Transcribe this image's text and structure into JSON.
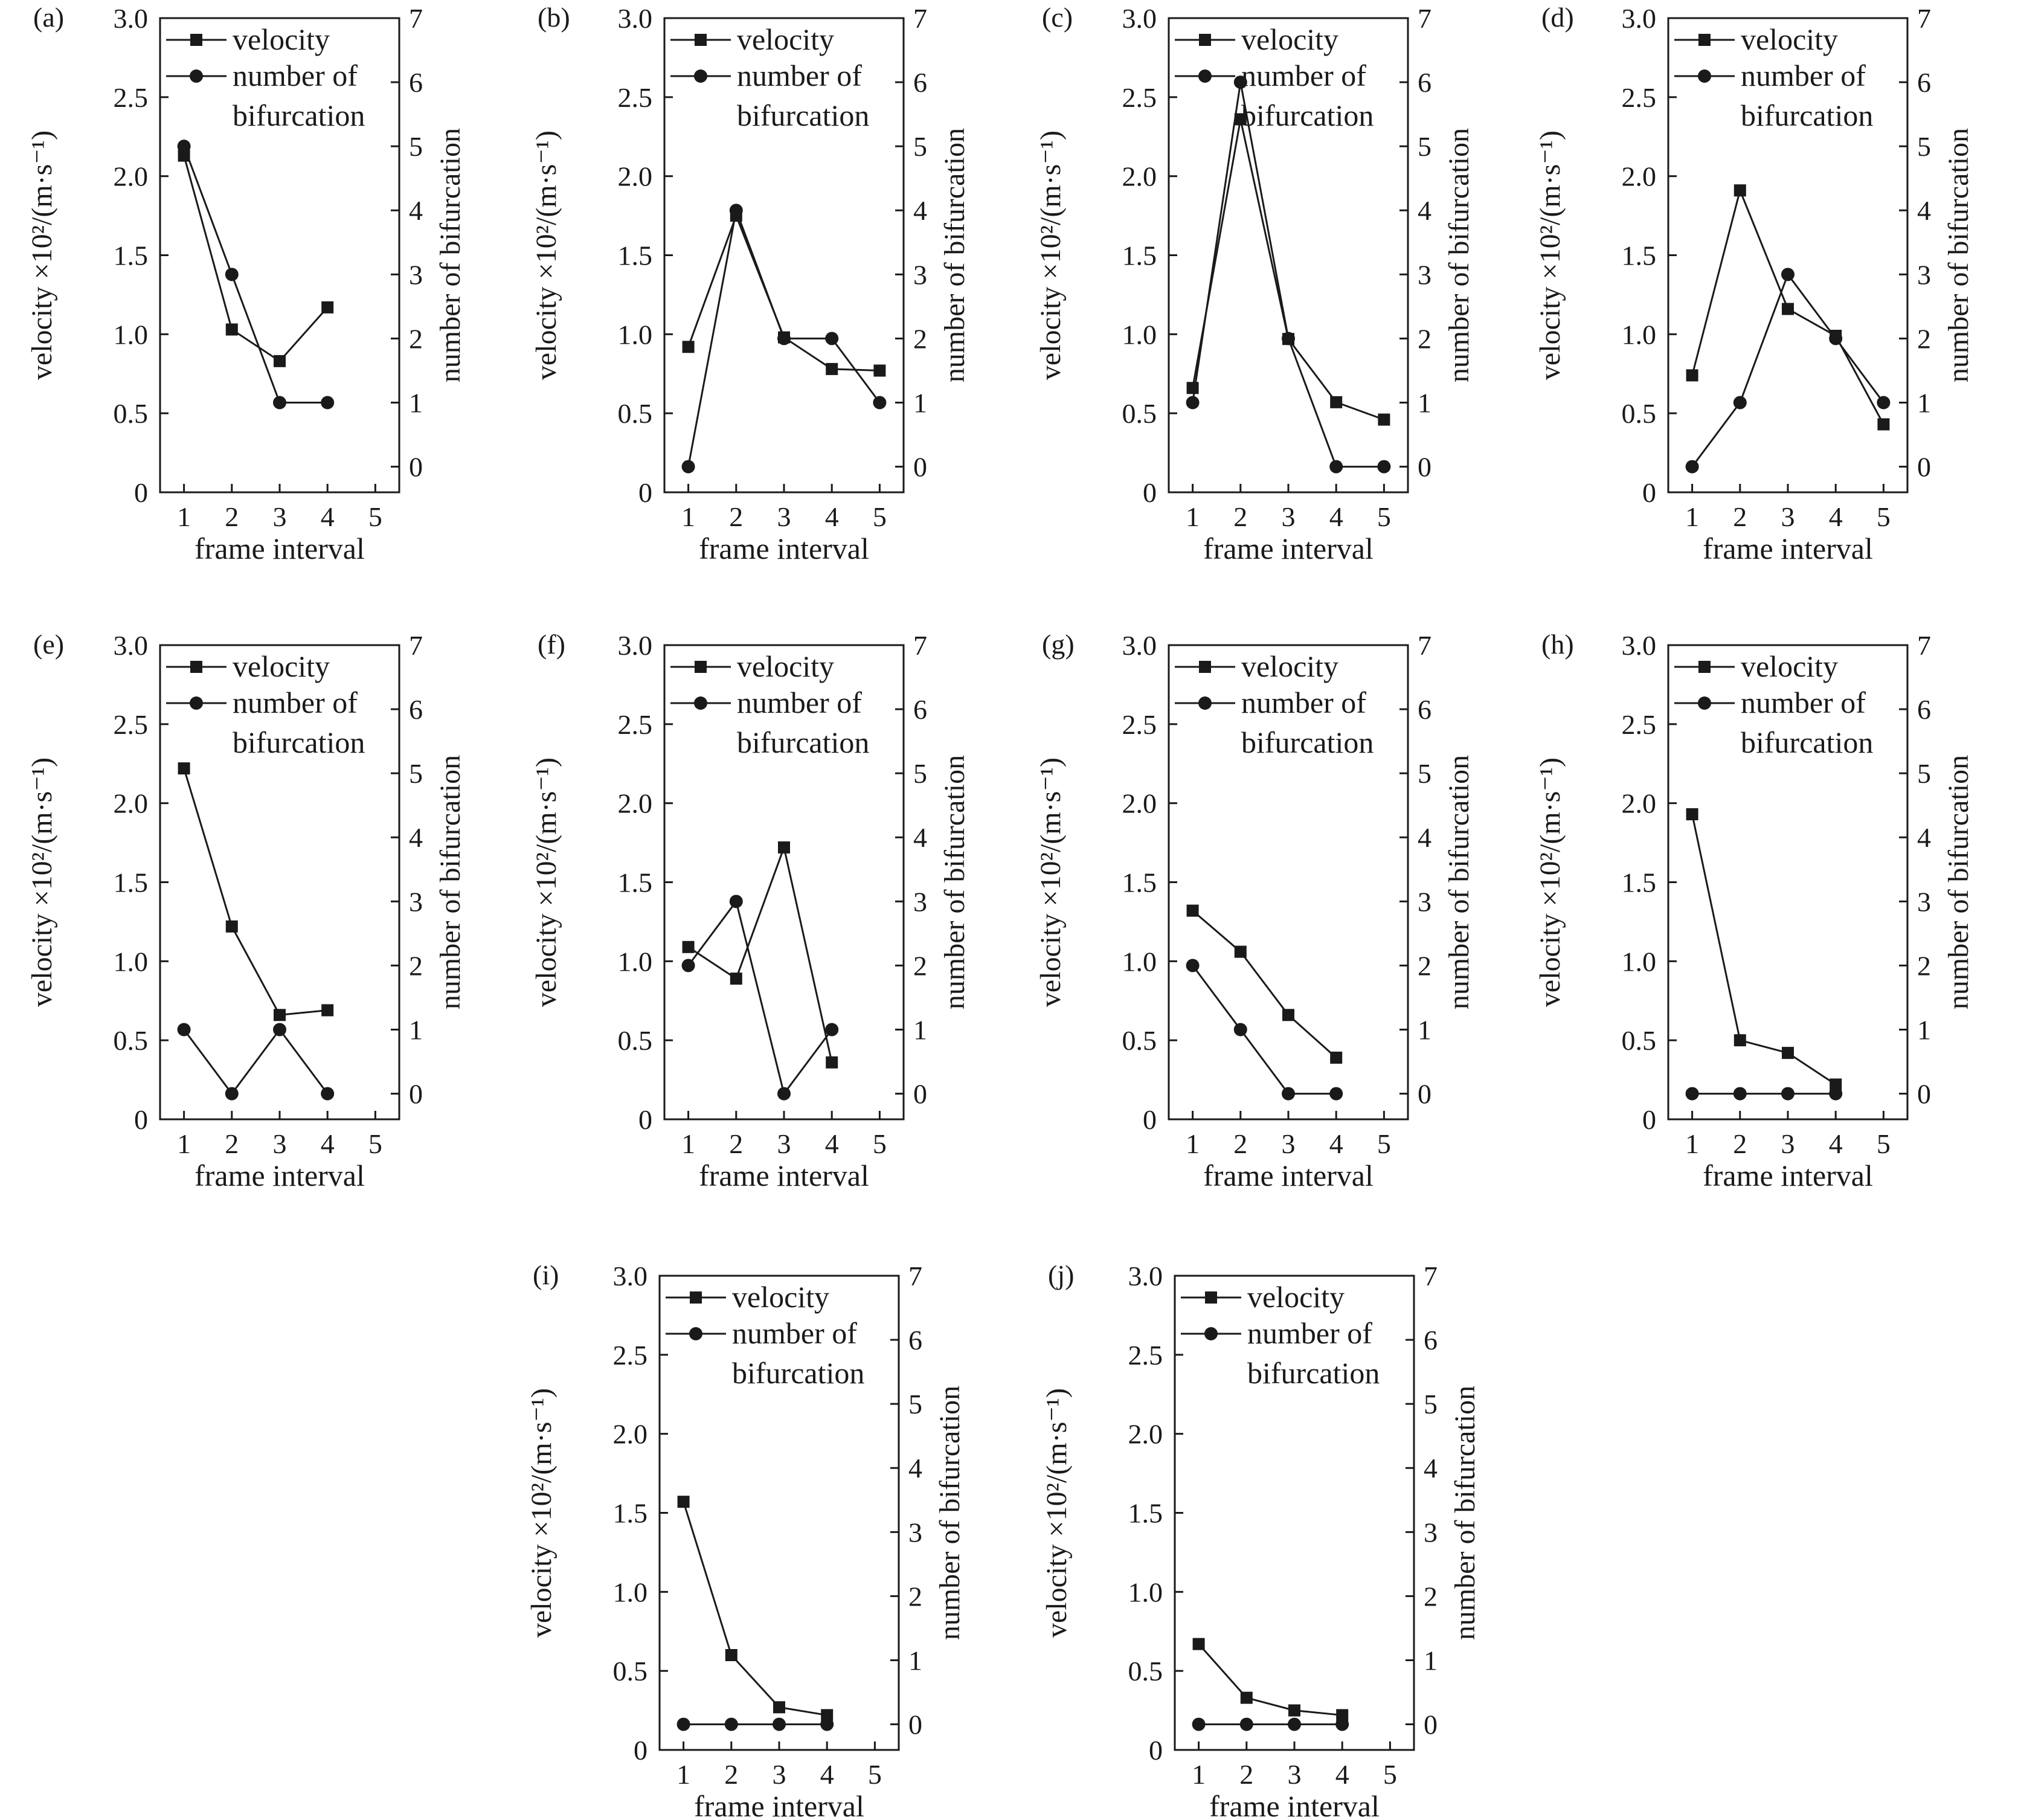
{
  "figure": {
    "legend": {
      "velocity_label": "velocity",
      "bifurcation_label_line1": "number of",
      "bifurcation_label_line2": "bifurcation"
    },
    "axes": {
      "xlabel": "frame interval",
      "ylabel_left": "velocity ×10²/(m·s⁻¹)",
      "ylabel_right": "number of bifurcation",
      "x_ticks": [
        "1",
        "2",
        "3",
        "4",
        "5"
      ],
      "y_left_ticks": [
        "0",
        "0.5",
        "1.0",
        "1.5",
        "2.0",
        "2.5",
        "3.0"
      ],
      "y_right_ticks": [
        "0",
        "1",
        "2",
        "3",
        "4",
        "5",
        "6",
        "7"
      ]
    }
  },
  "chart_data": [
    {
      "type": "line",
      "panel_label": "(a)",
      "x": [
        1,
        2,
        3,
        4
      ],
      "xlim": [
        0.5,
        5.5
      ],
      "ylim_left": [
        0,
        3
      ],
      "ylim_right": [
        -0.4,
        7
      ],
      "series": [
        {
          "name": "velocity",
          "marker": "square",
          "axis": "left",
          "values": [
            2.13,
            1.03,
            0.83,
            1.17
          ]
        },
        {
          "name": "number of bifurcation",
          "marker": "circle",
          "axis": "right",
          "values": [
            5,
            3,
            1,
            1
          ]
        }
      ]
    },
    {
      "type": "line",
      "panel_label": "(b)",
      "x": [
        1,
        2,
        3,
        4,
        5
      ],
      "xlim": [
        0.5,
        5.5
      ],
      "ylim_left": [
        0,
        3
      ],
      "ylim_right": [
        -0.4,
        7
      ],
      "series": [
        {
          "name": "velocity",
          "marker": "square",
          "axis": "left",
          "values": [
            0.92,
            1.75,
            0.98,
            0.78,
            0.77
          ]
        },
        {
          "name": "number of bifurcation",
          "marker": "circle",
          "axis": "right",
          "values": [
            0,
            4,
            2,
            2,
            1
          ]
        }
      ]
    },
    {
      "type": "line",
      "panel_label": "(c)",
      "x": [
        1,
        2,
        3,
        4,
        5
      ],
      "xlim": [
        0.5,
        5.5
      ],
      "ylim_left": [
        0,
        3
      ],
      "ylim_right": [
        -0.4,
        7
      ],
      "series": [
        {
          "name": "velocity",
          "marker": "square",
          "axis": "left",
          "values": [
            0.66,
            2.36,
            0.97,
            0.57,
            0.46
          ]
        },
        {
          "name": "number of bifurcation",
          "marker": "circle",
          "axis": "right",
          "values": [
            1,
            6,
            2,
            0,
            0
          ]
        }
      ]
    },
    {
      "type": "line",
      "panel_label": "(d)",
      "x": [
        1,
        2,
        3,
        4,
        5
      ],
      "xlim": [
        0.5,
        5.5
      ],
      "ylim_left": [
        0,
        3
      ],
      "ylim_right": [
        -0.4,
        7
      ],
      "series": [
        {
          "name": "velocity",
          "marker": "square",
          "axis": "left",
          "values": [
            0.74,
            1.91,
            1.16,
            0.99,
            0.43
          ]
        },
        {
          "name": "number of bifurcation",
          "marker": "circle",
          "axis": "right",
          "values": [
            0,
            1,
            3,
            2,
            1
          ]
        }
      ]
    },
    {
      "type": "line",
      "panel_label": "(e)",
      "x": [
        1,
        2,
        3,
        4
      ],
      "xlim": [
        0.5,
        5.5
      ],
      "ylim_left": [
        0,
        3
      ],
      "ylim_right": [
        -0.4,
        7
      ],
      "series": [
        {
          "name": "velocity",
          "marker": "square",
          "axis": "left",
          "values": [
            2.22,
            1.22,
            0.66,
            0.69
          ]
        },
        {
          "name": "number of bifurcation",
          "marker": "circle",
          "axis": "right",
          "values": [
            1,
            0,
            1,
            0
          ]
        }
      ]
    },
    {
      "type": "line",
      "panel_label": "(f)",
      "x": [
        1,
        2,
        3,
        4
      ],
      "xlim": [
        0.5,
        5.5
      ],
      "ylim_left": [
        0,
        3
      ],
      "ylim_right": [
        -0.4,
        7
      ],
      "series": [
        {
          "name": "velocity",
          "marker": "square",
          "axis": "left",
          "values": [
            1.09,
            0.89,
            1.72,
            0.36
          ]
        },
        {
          "name": "number of bifurcation",
          "marker": "circle",
          "axis": "right",
          "values": [
            2,
            3,
            0,
            1
          ]
        }
      ]
    },
    {
      "type": "line",
      "panel_label": "(g)",
      "x": [
        1,
        2,
        3,
        4
      ],
      "xlim": [
        0.5,
        5.5
      ],
      "ylim_left": [
        0,
        3
      ],
      "ylim_right": [
        -0.4,
        7
      ],
      "series": [
        {
          "name": "velocity",
          "marker": "square",
          "axis": "left",
          "values": [
            1.32,
            1.06,
            0.66,
            0.39
          ]
        },
        {
          "name": "number of bifurcation",
          "marker": "circle",
          "axis": "right",
          "values": [
            2,
            1,
            0,
            0
          ]
        }
      ]
    },
    {
      "type": "line",
      "panel_label": "(h)",
      "x": [
        1,
        2,
        3,
        4
      ],
      "xlim": [
        0.5,
        5.5
      ],
      "ylim_left": [
        0,
        3
      ],
      "ylim_right": [
        -0.4,
        7
      ],
      "series": [
        {
          "name": "velocity",
          "marker": "square",
          "axis": "left",
          "values": [
            1.93,
            0.5,
            0.42,
            0.22
          ]
        },
        {
          "name": "number of bifurcation",
          "marker": "circle",
          "axis": "right",
          "values": [
            0,
            0,
            0,
            0
          ]
        }
      ]
    },
    {
      "type": "line",
      "panel_label": "(i)",
      "x": [
        1,
        2,
        3,
        4
      ],
      "xlim": [
        0.5,
        5.5
      ],
      "ylim_left": [
        0,
        3
      ],
      "ylim_right": [
        -0.4,
        7
      ],
      "series": [
        {
          "name": "velocity",
          "marker": "square",
          "axis": "left",
          "values": [
            1.57,
            0.6,
            0.27,
            0.22
          ]
        },
        {
          "name": "number of bifurcation",
          "marker": "circle",
          "axis": "right",
          "values": [
            0,
            0,
            0,
            0
          ]
        }
      ]
    },
    {
      "type": "line",
      "panel_label": "(j)",
      "x": [
        1,
        2,
        3,
        4
      ],
      "xlim": [
        0.5,
        5.5
      ],
      "ylim_left": [
        0,
        3
      ],
      "ylim_right": [
        -0.4,
        7
      ],
      "series": [
        {
          "name": "velocity",
          "marker": "square",
          "axis": "left",
          "values": [
            0.67,
            0.33,
            0.25,
            0.22
          ]
        },
        {
          "name": "number of bifurcation",
          "marker": "circle",
          "axis": "right",
          "values": [
            0,
            0,
            0,
            0
          ]
        }
      ]
    }
  ]
}
